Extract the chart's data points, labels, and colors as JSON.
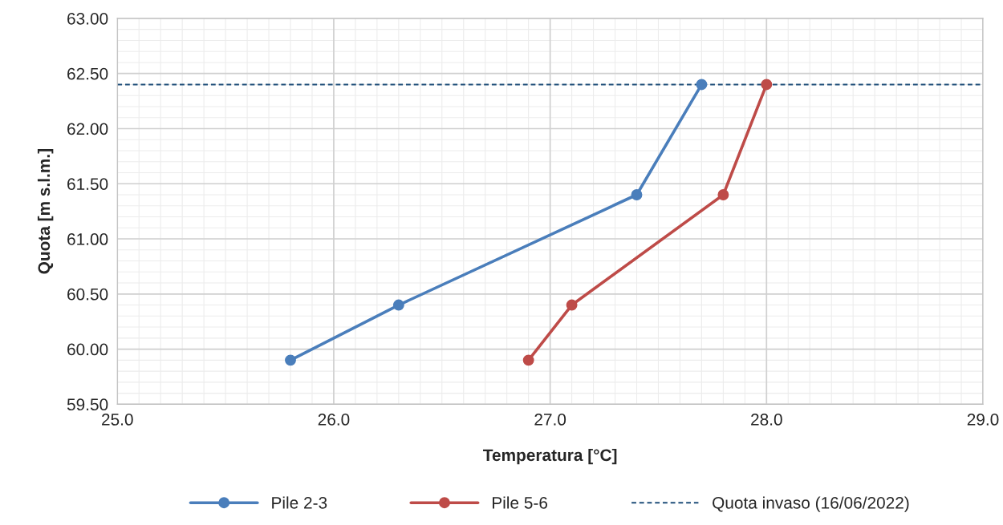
{
  "chart_data": {
    "type": "line",
    "xlabel": "Temperatura [°C]",
    "ylabel": "Quota [m s.l.m.]",
    "series": [
      {
        "name": "Pile 2-3",
        "color": "#4a7ebb",
        "x": [
          25.8,
          26.3,
          27.4,
          27.7
        ],
        "values": [
          59.9,
          60.4,
          61.4,
          62.4
        ]
      },
      {
        "name": "Pile 5-6",
        "color": "#be4b48",
        "x": [
          26.9,
          27.1,
          27.8,
          28.0
        ],
        "values": [
          59.9,
          60.4,
          61.4,
          62.4
        ]
      }
    ],
    "ref_lines": [
      {
        "axis": "y",
        "value": 62.4,
        "label": "Quota invaso (16/06/2022)",
        "color": "#1f4e79",
        "line_style": "dashed"
      }
    ],
    "xlim": [
      25,
      29
    ],
    "xticks": [
      {
        "value": 25,
        "label": "25.0"
      },
      {
        "value": 26,
        "label": "26.0"
      },
      {
        "value": 27,
        "label": "27.0"
      },
      {
        "value": 28,
        "label": "28.0"
      },
      {
        "value": 29,
        "label": "29.0"
      }
    ],
    "ylim": [
      59.5,
      63
    ],
    "yticks": [
      {
        "value": 59.5,
        "label": "59.50"
      },
      {
        "value": 60,
        "label": "60.00"
      },
      {
        "value": 60.5,
        "label": "60.50"
      },
      {
        "value": 61,
        "label": "61.00"
      },
      {
        "value": 61.5,
        "label": "61.50"
      },
      {
        "value": 62,
        "label": "62.00"
      },
      {
        "value": 62.5,
        "label": "62.50"
      },
      {
        "value": 63,
        "label": "63.00"
      }
    ],
    "grid": true,
    "legend": "bottom",
    "marker": "circle",
    "line_style": "solid"
  }
}
